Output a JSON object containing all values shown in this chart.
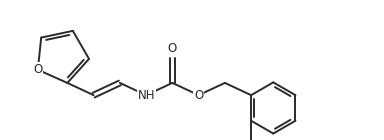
{
  "bg_color": "#ffffff",
  "line_color": "#2a2a2a",
  "line_width": 1.4,
  "font_size": 8.5,
  "figsize": [
    3.84,
    1.4
  ],
  "dpi": 100,
  "xlim": [
    -0.1,
    3.84
  ],
  "ylim": [
    -0.05,
    1.4
  ]
}
